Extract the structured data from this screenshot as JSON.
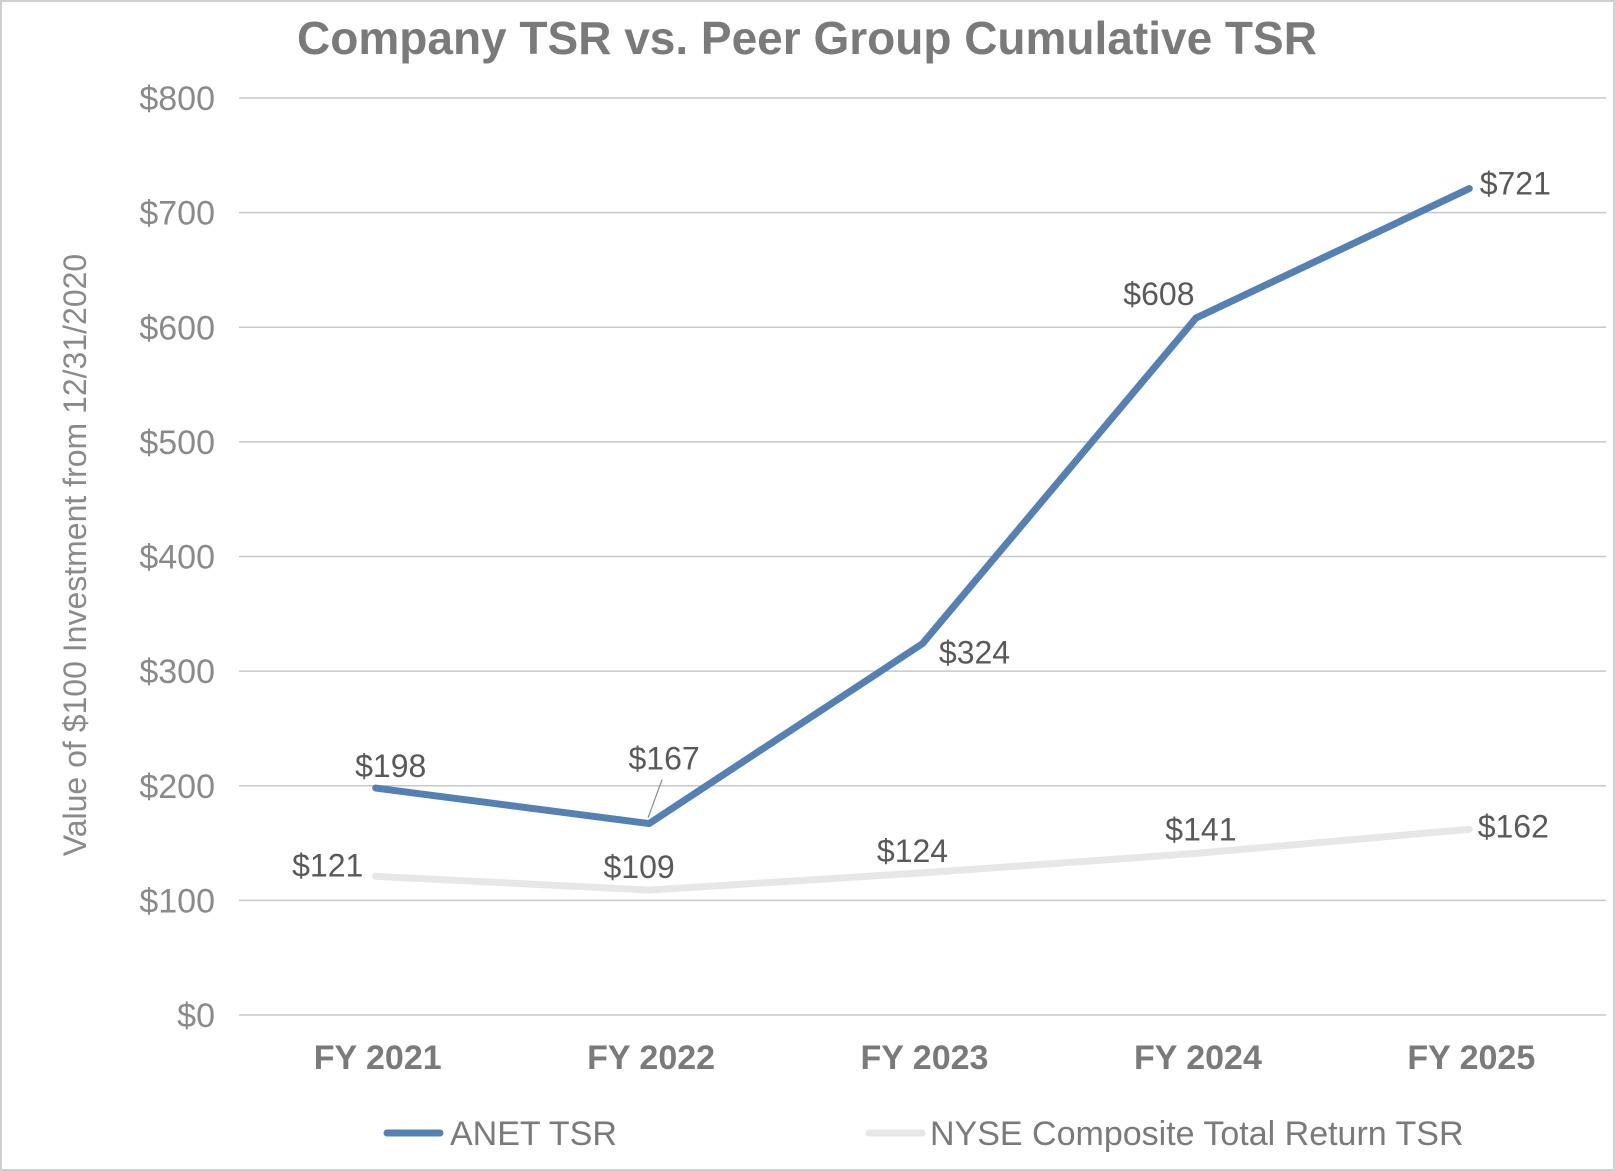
{
  "chart_data": {
    "type": "line",
    "title": "Company TSR vs. Peer Group Cumulative TSR",
    "xlabel": "",
    "ylabel": "Value of $100 Investment from 12/31/2020",
    "categories": [
      "FY 2021",
      "FY 2022",
      "FY 2023",
      "FY 2024",
      "FY 2025"
    ],
    "ylim": [
      0,
      800
    ],
    "yticks": [
      0,
      100,
      200,
      300,
      400,
      500,
      600,
      700,
      800
    ],
    "ytick_labels": [
      "$0",
      "$100",
      "$200",
      "$300",
      "$400",
      "$500",
      "$600",
      "$700",
      "$800"
    ],
    "grid": true,
    "legend_position": "bottom",
    "series": [
      {
        "name": "ANET TSR",
        "color": "#5580b3",
        "values": [
          198,
          167,
          324,
          608,
          721
        ],
        "labels": [
          "$198",
          "$167",
          "$324",
          "$608",
          "$721"
        ]
      },
      {
        "name": "NYSE Composite Total Return TSR",
        "color": "#e6e7e8",
        "values": [
          121,
          109,
          124,
          141,
          162
        ],
        "labels": [
          "$121",
          "$109",
          "$124",
          "$141",
          "$162"
        ]
      }
    ]
  }
}
